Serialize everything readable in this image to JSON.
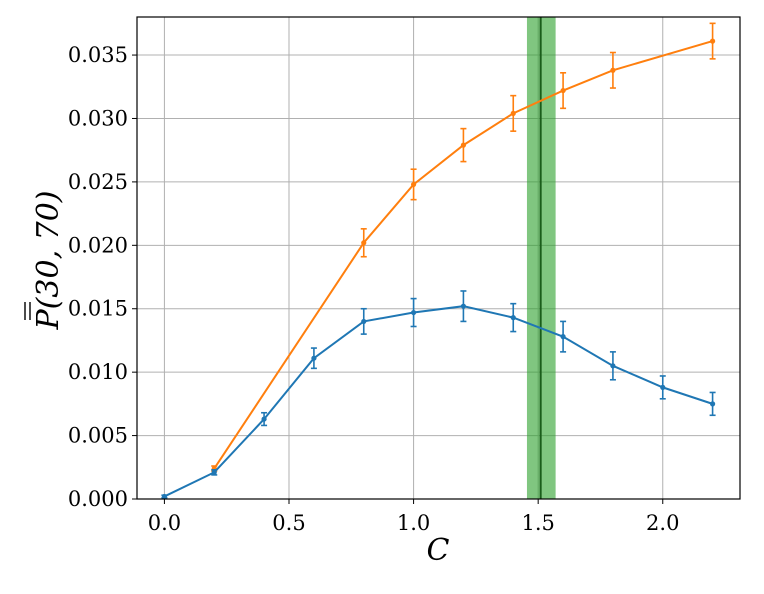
{
  "chart_data": {
    "type": "line",
    "title": "",
    "xlabel": "C",
    "ylabel": "P(30, 70)",
    "xlim": [
      -0.11,
      2.31
    ],
    "ylim": [
      0.0,
      0.038
    ],
    "x_ticks": [
      0.0,
      0.5,
      1.0,
      1.5,
      2.0
    ],
    "x_tick_labels": [
      "0.0",
      "0.5",
      "1.0",
      "1.5",
      "2.0"
    ],
    "y_ticks": [
      0.0,
      0.005,
      0.01,
      0.015,
      0.02,
      0.025,
      0.03,
      0.035
    ],
    "y_tick_labels": [
      "0.000",
      "0.005",
      "0.010",
      "0.015",
      "0.020",
      "0.025",
      "0.030",
      "0.035"
    ],
    "grid": true,
    "legend": "none",
    "band": {
      "x_min": 1.455,
      "x_max": 1.57,
      "center": 1.51,
      "fill_color": "#2ca02c",
      "line_color": "#1a5c1a"
    },
    "series": [
      {
        "color": "#ff7f0e",
        "x": [
          0.2,
          0.8,
          1.0,
          1.2,
          1.4,
          1.6,
          1.8,
          2.2
        ],
        "y": [
          0.0024,
          0.0202,
          0.0248,
          0.0279,
          0.0304,
          0.0322,
          0.0338,
          0.0361
        ],
        "yerr": [
          0.0002,
          0.0011,
          0.0012,
          0.0013,
          0.0014,
          0.0014,
          0.0014,
          0.0014
        ]
      },
      {
        "color": "#1f77b4",
        "x": [
          0.0,
          0.2,
          0.4,
          0.6,
          0.8,
          1.0,
          1.2,
          1.4,
          1.6,
          1.8,
          2.0,
          2.2
        ],
        "y": [
          0.0002,
          0.0021,
          0.0063,
          0.0111,
          0.014,
          0.0147,
          0.0152,
          0.0143,
          0.0128,
          0.0105,
          0.0088,
          0.0075
        ],
        "yerr": [
          0.0001,
          0.0002,
          0.0005,
          0.0008,
          0.001,
          0.0011,
          0.0012,
          0.0011,
          0.0012,
          0.0011,
          0.0009,
          0.0009
        ]
      }
    ]
  }
}
